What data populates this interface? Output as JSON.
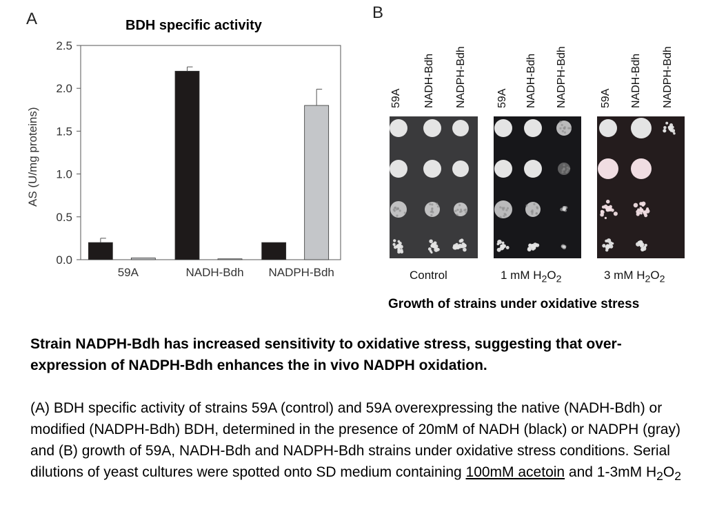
{
  "panel_a": {
    "letter": "A"
  },
  "chart_data": {
    "type": "bar",
    "title": "BDH specific activity",
    "xlabel": "",
    "ylabel": "AS (U/mg proteins)",
    "categories": [
      "59A",
      "NADH-Bdh",
      "NADPH-Bdh"
    ],
    "ylim": [
      0,
      2.5
    ],
    "yticks": [
      "0.0",
      "0.5",
      "1.0",
      "1.5",
      "2.0",
      "2.5"
    ],
    "series": [
      {
        "name": "",
        "color": "#1e1a1a",
        "values": [
          0.2,
          2.2,
          0.2
        ],
        "errors": [
          0.05,
          0.05,
          0
        ]
      },
      {
        "name": "",
        "color": "#c4c6c9",
        "values": [
          0.02,
          0.01,
          1.8
        ],
        "errors": [
          0,
          0,
          0.19
        ]
      }
    ],
    "grid": false
  },
  "panel_b": {
    "letter": "B",
    "strain_labels": [
      "59A",
      "NADH-Bdh",
      "NADPH-Bdh"
    ],
    "conditions": [
      {
        "label": "Control",
        "background": "#3a3a3c"
      },
      {
        "label_prefix": "1 mM H",
        "sub1": "2",
        "label_mid": "O",
        "sub2": "2",
        "background": "#17171a"
      },
      {
        "label_prefix": "3 mM H",
        "sub1": "2",
        "label_mid": "O",
        "sub2": "2",
        "background": "#241c1d"
      }
    ],
    "caption": "Growth of strains under oxidative stress"
  },
  "text": {
    "headline": "Strain NADPH-Bdh has increased sensitivity to oxidative stress, suggesting that over-expression of NADPH-Bdh enhances the in vivo NADPH oxidation.",
    "body_main": "(A) BDH specific activity of strains 59A (control) and 59A overexpressing the native (NADH-Bdh) or modified (NADPH-Bdh) BDH, determined in the presence of 20mM of NADH (black) or NADPH (gray) and (B) growth of 59A, NADH-Bdh and NADPH-Bdh strains under oxidative stress conditions. Serial dilutions of yeast cultures were spotted onto SD medium containing ",
    "body_underlined": "100mM acetoin",
    "body_after": " and 1-3mM H",
    "sub1": "2",
    "body_mid": "O",
    "sub2": "2"
  }
}
